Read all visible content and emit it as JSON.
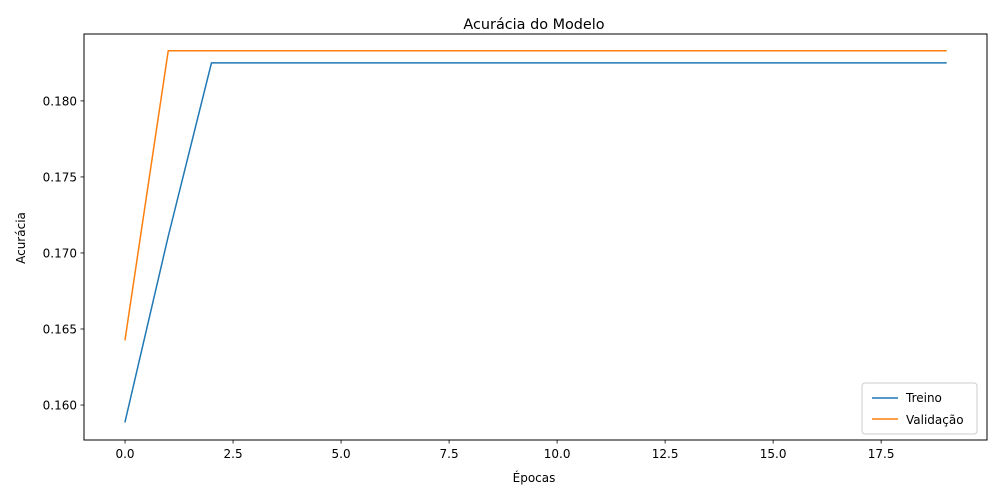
{
  "chart_data": {
    "type": "line",
    "title": "Acurácia do Modelo",
    "xlabel": "Épocas",
    "ylabel": "Acurácia",
    "xlim": [
      -0.95,
      19.95
    ],
    "ylim": [
      0.1577,
      0.1844
    ],
    "xticks": [
      0,
      2.5,
      5,
      7.5,
      10,
      12.5,
      15,
      17.5
    ],
    "xtick_labels": [
      "0.0",
      "2.5",
      "5.0",
      "7.5",
      "10.0",
      "12.5",
      "15.0",
      "17.5"
    ],
    "yticks": [
      0.16,
      0.165,
      0.17,
      0.175,
      0.18
    ],
    "ytick_labels": [
      "0.160",
      "0.165",
      "0.170",
      "0.175",
      "0.180"
    ],
    "grid": false,
    "legend_position": "lower-right",
    "x": [
      0,
      1,
      2,
      3,
      4,
      5,
      6,
      7,
      8,
      9,
      10,
      11,
      12,
      13,
      14,
      15,
      16,
      17,
      18,
      19
    ],
    "series": [
      {
        "name": "Treino",
        "color": "#1f77b4",
        "values": [
          0.1589,
          0.1711,
          0.1825,
          0.1825,
          0.1825,
          0.1825,
          0.1825,
          0.1825,
          0.1825,
          0.1825,
          0.1825,
          0.1825,
          0.1825,
          0.1825,
          0.1825,
          0.1825,
          0.1825,
          0.1825,
          0.1825,
          0.1825
        ]
      },
      {
        "name": "Validação",
        "color": "#ff7f0e",
        "values": [
          0.1643,
          0.1833,
          0.1833,
          0.1833,
          0.1833,
          0.1833,
          0.1833,
          0.1833,
          0.1833,
          0.1833,
          0.1833,
          0.1833,
          0.1833,
          0.1833,
          0.1833,
          0.1833,
          0.1833,
          0.1833,
          0.1833,
          0.1833
        ]
      }
    ]
  }
}
